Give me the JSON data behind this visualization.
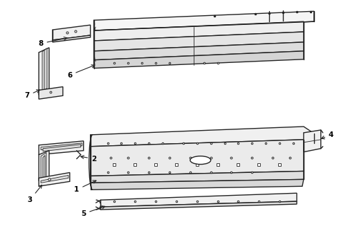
{
  "background_color": "#ffffff",
  "line_color": "#222222",
  "label_color": "#000000",
  "fig_width": 4.9,
  "fig_height": 3.6,
  "dpi": 100
}
